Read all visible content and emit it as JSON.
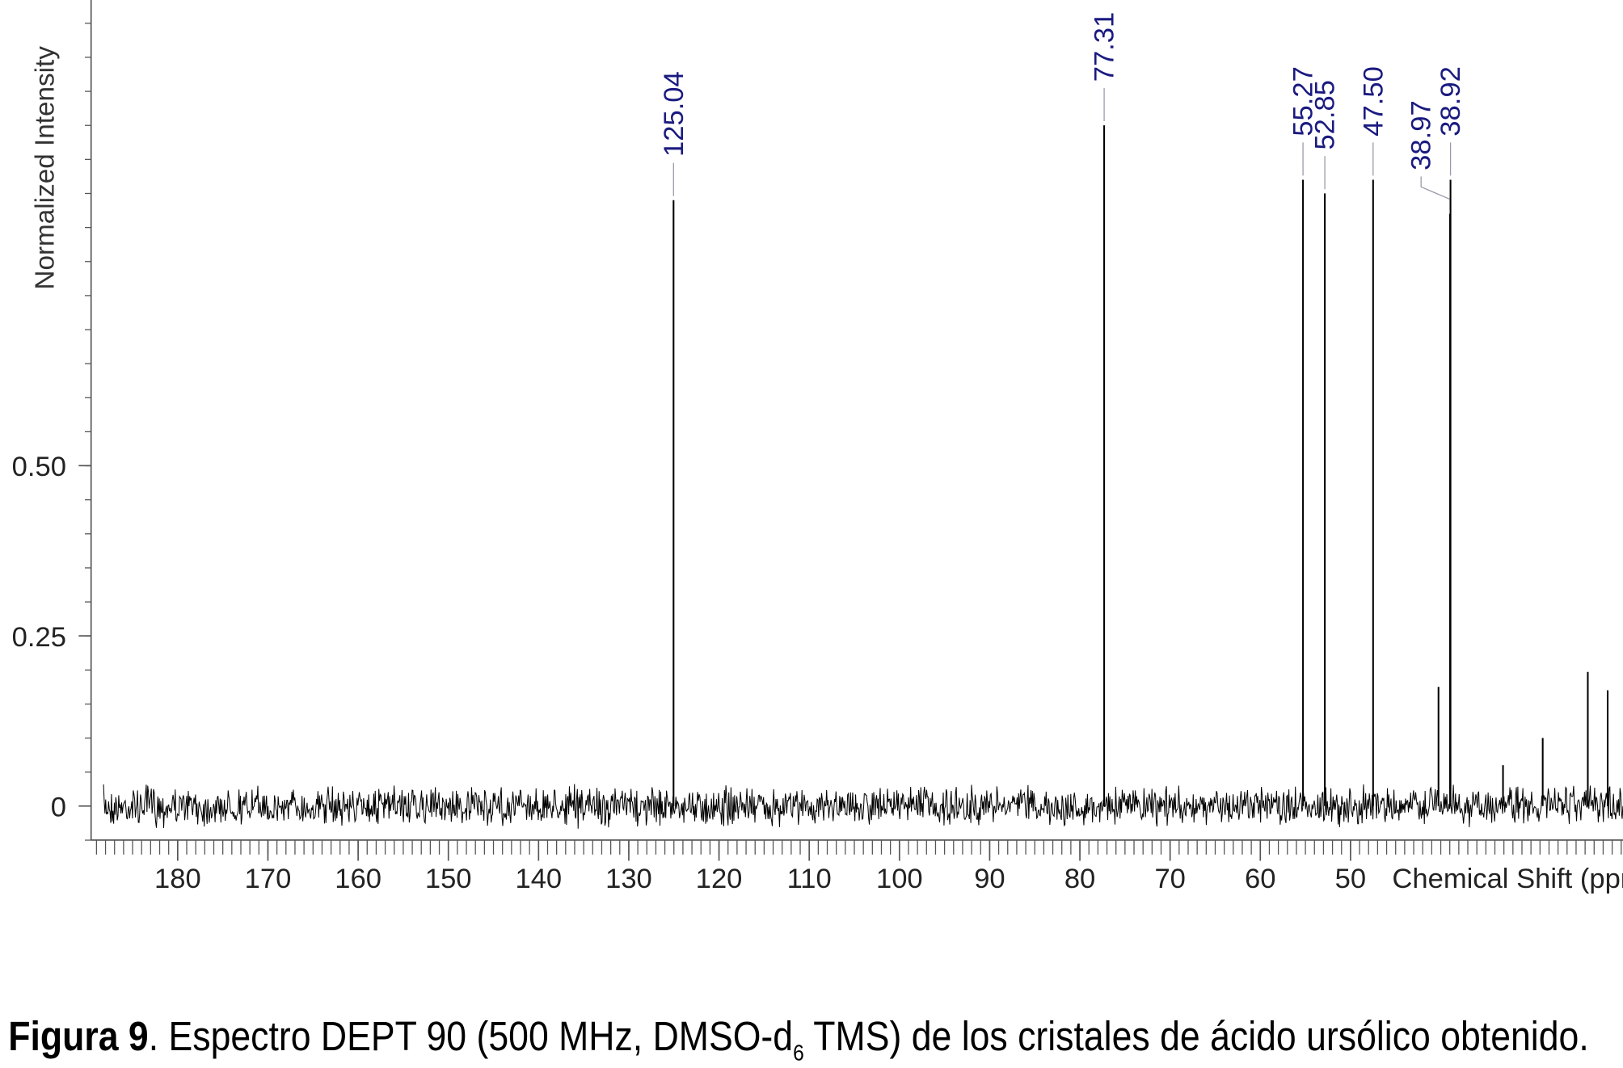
{
  "chart_data": {
    "type": "spectrum",
    "y_label": "Normalized Intensity",
    "x_label": "Chemical Shift (ppm)",
    "x": [
      125.04,
      77.31,
      55.27,
      52.85,
      47.5,
      38.97,
      38.92,
      40.25,
      33.1,
      28.7,
      23.7,
      21.5
    ],
    "values": [
      0.89,
      1.0,
      0.92,
      0.9,
      0.92,
      0.87,
      0.92,
      0.175,
      0.06,
      0.1,
      0.197,
      0.17
    ],
    "value_labels": [
      "125.04",
      "77.31",
      "55.27",
      "52.85",
      "47.50",
      "38.97",
      "38.92",
      null,
      null,
      null,
      null,
      null
    ],
    "color": "#000000",
    "label_color": "#1a1a80",
    "xlim": [
      189.6,
      19.8
    ],
    "xticks": [
      180,
      170,
      160,
      150,
      140,
      130,
      120,
      110,
      100,
      90,
      80,
      70,
      60,
      50
    ],
    "ylim": [
      -0.05,
      1.184
    ],
    "yticks": [
      {
        "value": 0,
        "label": "0"
      },
      {
        "value": 0.25,
        "label": "0.25"
      },
      {
        "value": 0.5,
        "label": "0.50"
      }
    ],
    "caption": {
      "bold": "Figura 9",
      "text": ". Espectro DEPT 90 (500 MHz, DMSO-d",
      "subscript": "6",
      "rest": " TMS) de los cristales de ácido ursólico obtenido."
    }
  }
}
